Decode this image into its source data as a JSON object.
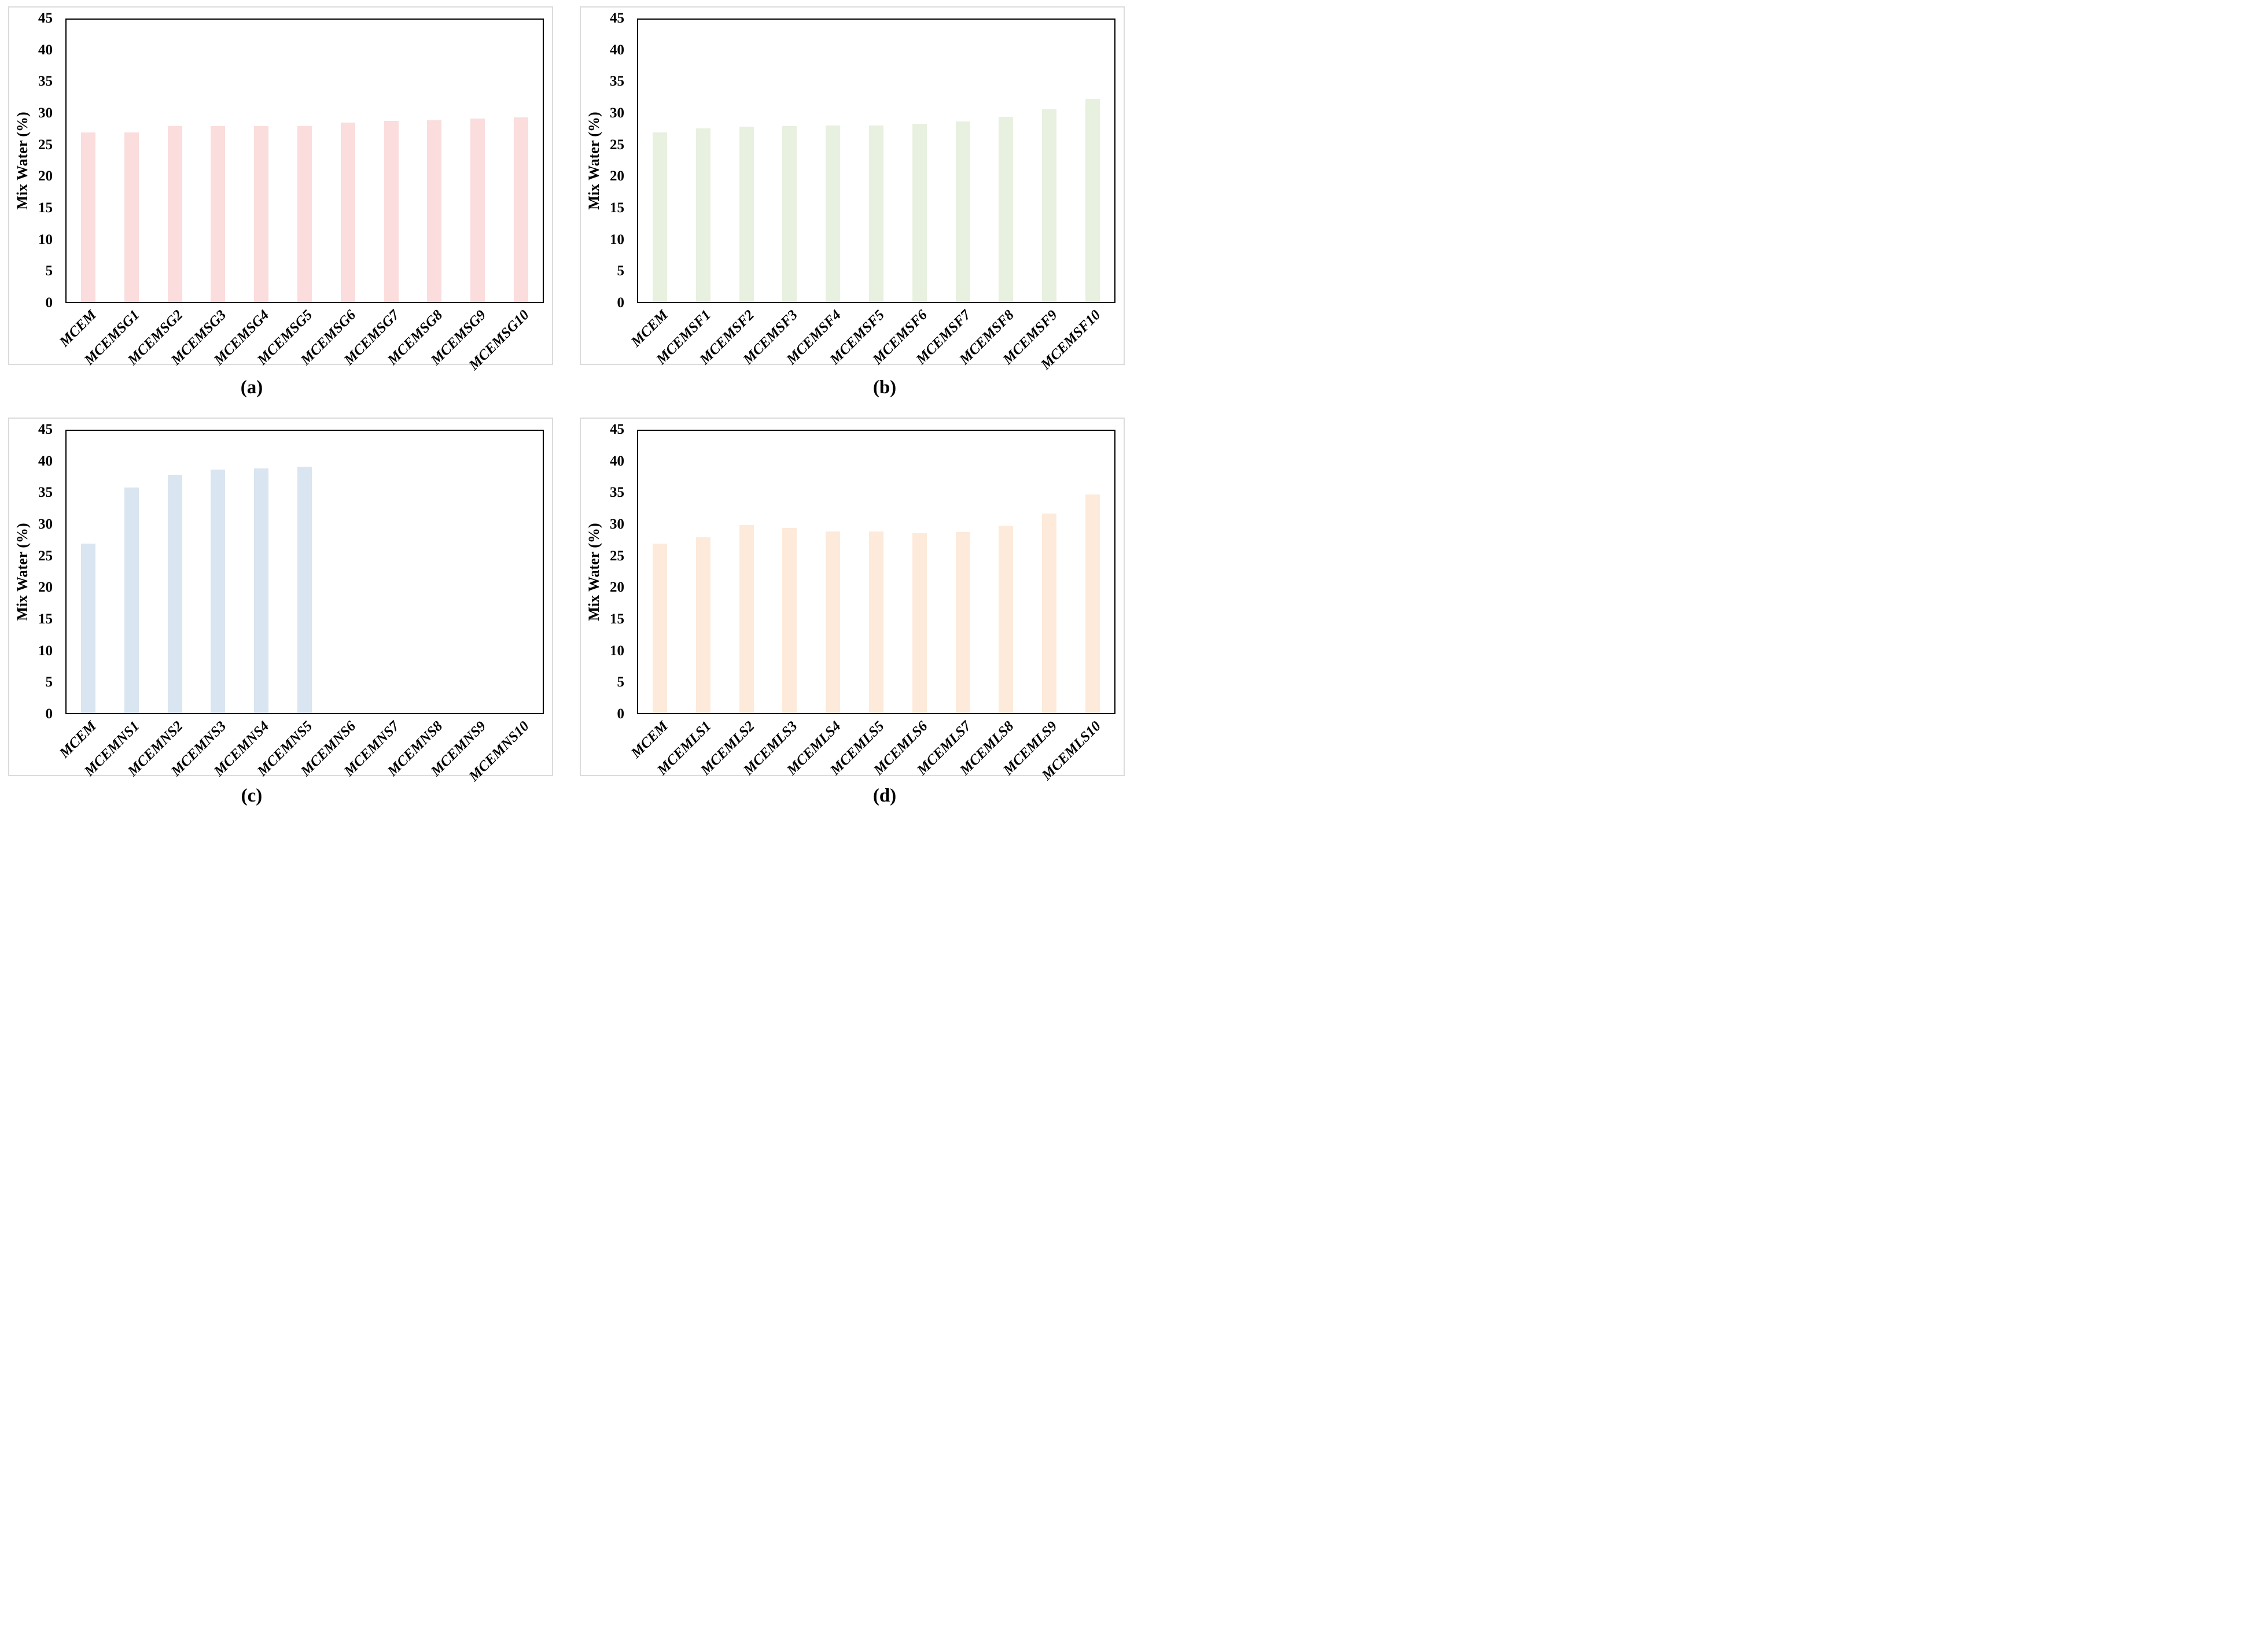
{
  "figure": {
    "background": "#ffffff",
    "panel_border_color": "#dbdbdb",
    "axis_color": "#000000",
    "description": "Four bar chart panels (a)-(d) showing Mix Water (%) for mortar mixes"
  },
  "chart_data": [
    {
      "id": "a",
      "type": "bar",
      "caption": "(a)",
      "title": "",
      "xlabel": "",
      "ylabel": "Mix Water (%)",
      "ylim": [
        0,
        45
      ],
      "yticks": [
        0,
        5,
        10,
        15,
        20,
        25,
        30,
        35,
        40,
        45
      ],
      "grid": false,
      "legend": false,
      "bar_color": "#fadddc",
      "categories": [
        "MCEM",
        "MCEMSG1",
        "MCEMSG2",
        "MCEMSG3",
        "MCEMSG4",
        "MCEMSG5",
        "MCEMSG6",
        "MCEMSG7",
        "MCEMSG8",
        "MCEMSG9",
        "MCEMSG10"
      ],
      "values": [
        27,
        27,
        28,
        28,
        28,
        28,
        28.6,
        28.9,
        29,
        29.2,
        29.4
      ]
    },
    {
      "id": "b",
      "type": "bar",
      "caption": "(b)",
      "title": "",
      "xlabel": "",
      "ylabel": "Mix Water (%)",
      "ylim": [
        0,
        45
      ],
      "yticks": [
        0,
        5,
        10,
        15,
        20,
        25,
        30,
        35,
        40,
        45
      ],
      "grid": false,
      "legend": false,
      "bar_color": "#e8f0df",
      "categories": [
        "MCEM",
        "MCEMSF1",
        "MCEMSF2",
        "MCEMSF3",
        "MCEMSF4",
        "MCEMSF5",
        "MCEMSF6",
        "MCEMSF7",
        "MCEMSF8",
        "MCEMSF9",
        "MCEMSF10"
      ],
      "values": [
        27,
        27.7,
        27.9,
        28,
        28.1,
        28.1,
        28.4,
        28.8,
        29.5,
        30.7,
        32.4
      ]
    },
    {
      "id": "c",
      "type": "bar",
      "caption": "(c)",
      "title": "",
      "xlabel": "",
      "ylabel": "Mix Water (%)",
      "ylim": [
        0,
        45
      ],
      "yticks": [
        0,
        5,
        10,
        15,
        20,
        25,
        30,
        35,
        40,
        45
      ],
      "grid": false,
      "legend": false,
      "bar_color": "#d9e5f0",
      "categories": [
        "MCEM",
        "MCEMNS1",
        "MCEMNS2",
        "MCEMNS3",
        "MCEMNS4",
        "MCEMNS5",
        "MCEMNS6",
        "MCEMNS7",
        "MCEMNS8",
        "MCEMNS9",
        "MCEMNS10"
      ],
      "values": [
        27,
        36,
        38,
        38.8,
        39,
        39.3,
        0,
        0,
        0,
        0,
        0
      ]
    },
    {
      "id": "d",
      "type": "bar",
      "caption": "(d)",
      "title": "",
      "xlabel": "",
      "ylabel": "Mix Water (%)",
      "ylim": [
        0,
        45
      ],
      "yticks": [
        0,
        5,
        10,
        15,
        20,
        25,
        30,
        35,
        40,
        45
      ],
      "grid": false,
      "legend": false,
      "bar_color": "#fdeada",
      "categories": [
        "MCEM",
        "MCEMLS1",
        "MCEMLS2",
        "MCEMLS3",
        "MCEMLS4",
        "MCEMLS5",
        "MCEMLS6",
        "MCEMLS7",
        "MCEMLS8",
        "MCEMLS9",
        "MCEMLS10"
      ],
      "values": [
        27,
        28,
        30,
        29.5,
        29,
        29,
        28.7,
        28.9,
        29.9,
        31.8,
        34.9
      ]
    }
  ]
}
